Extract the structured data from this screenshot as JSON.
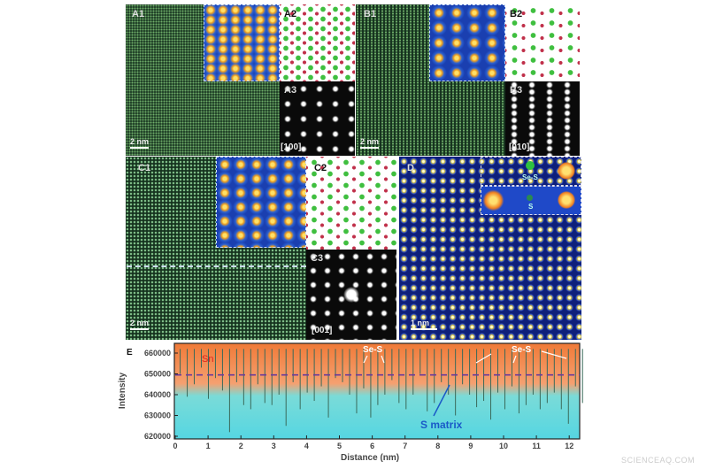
{
  "panels": {
    "a1": "A1",
    "a2": "A2",
    "a3": "A3",
    "a3_zone": "[100]",
    "a_scale": "2 nm",
    "b1": "B1",
    "b2": "B2",
    "b3": "B3",
    "b3_zone": "[010]",
    "b_scale": "2 nm",
    "c1": "C1",
    "c2": "C2",
    "c3": "C3",
    "c3_zone": "[001]",
    "c_scale": "2 nm",
    "d": "D",
    "d_scale": "1 nm",
    "d_inset1": "Se-S",
    "d_inset2": "S"
  },
  "chart_data": {
    "type": "line",
    "panel_label": "E",
    "xlabel": "Distance (nm)",
    "ylabel": "Intensity",
    "xlim": [
      0,
      12.8
    ],
    "ylim": [
      620000,
      665000
    ],
    "x_ticks": [
      "0",
      "1",
      "2",
      "3",
      "4",
      "5",
      "6",
      "7",
      "8",
      "9",
      "10",
      "11",
      "12"
    ],
    "y_ticks": [
      "620000",
      "630000",
      "640000",
      "650000",
      "660000"
    ],
    "reference_line": 649500,
    "baseline": 662000,
    "spike_x_start": 0.15,
    "spike_x_step": 0.215,
    "spike_minima": [
      650000,
      639000,
      645000,
      653000,
      638000,
      648000,
      642000,
      622000,
      646000,
      635000,
      633000,
      645000,
      636000,
      635000,
      640000,
      625000,
      646000,
      633000,
      641000,
      637000,
      644000,
      629000,
      648000,
      646000,
      640000,
      631000,
      643000,
      629000,
      635000,
      640000,
      647000,
      636000,
      633000,
      640000,
      650000,
      632000,
      636000,
      646000,
      640000,
      630000,
      645000,
      640000,
      634000,
      637000,
      628000,
      641000,
      633000,
      644000,
      631000,
      635000,
      640000,
      633000,
      636000,
      641000,
      633000,
      626000,
      644000,
      636000
    ],
    "annotations": {
      "sn": "Sn",
      "se_s_1": "Se-S",
      "se_s_2": "Se-S",
      "s_matrix": "S matrix"
    },
    "colors": {
      "top": "#f07a38",
      "bottom": "#55d6e2",
      "dashed": "#6a3a9a",
      "sn": "#e02020",
      "s_matrix": "#1a5ac8"
    }
  },
  "watermark": "SCIENCEAQ.COM"
}
